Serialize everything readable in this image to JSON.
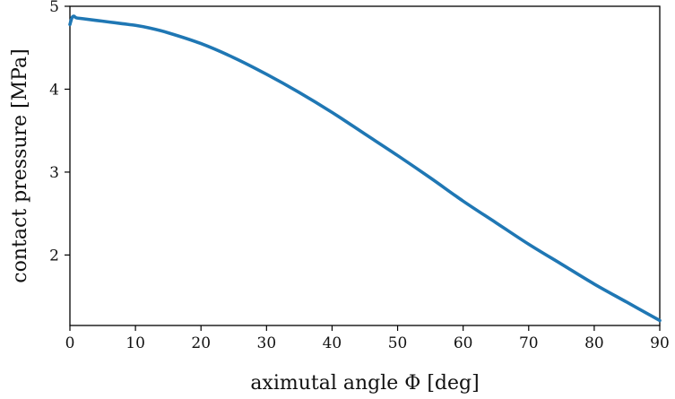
{
  "chart_data": {
    "type": "line",
    "title": "",
    "xlabel": "aximutal angle Φ [deg]",
    "ylabel": "contact pressure [MPa]",
    "xlim": [
      0,
      90
    ],
    "ylim": [
      1.15,
      5.0
    ],
    "xticks": [
      0,
      10,
      20,
      30,
      40,
      50,
      60,
      70,
      80,
      90
    ],
    "yticks": [
      2,
      3,
      4,
      5
    ],
    "xtick_labels": [
      "0",
      "10",
      "20",
      "30",
      "40",
      "50",
      "60",
      "70",
      "80",
      "90"
    ],
    "ytick_labels": [
      "2",
      "3",
      "4",
      "5"
    ],
    "grid": false,
    "legend": false,
    "line_color": "#1f77b4",
    "series": [
      {
        "x": [
          0,
          0.3,
          0.6,
          1,
          2,
          5,
          8,
          10,
          12,
          15,
          20,
          25,
          30,
          35,
          40,
          45,
          50,
          55,
          60,
          65,
          70,
          75,
          80,
          85,
          90
        ],
        "values": [
          4.78,
          4.86,
          4.88,
          4.86,
          4.85,
          4.82,
          4.79,
          4.77,
          4.74,
          4.68,
          4.55,
          4.38,
          4.18,
          3.96,
          3.72,
          3.46,
          3.2,
          2.93,
          2.65,
          2.39,
          2.13,
          1.89,
          1.65,
          1.43,
          1.21
        ]
      }
    ]
  }
}
